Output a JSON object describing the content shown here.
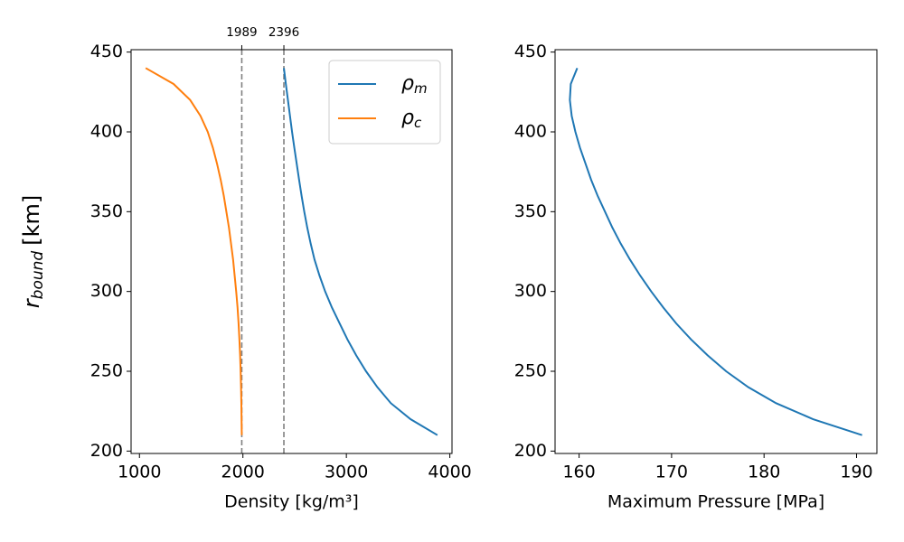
{
  "chart_data": [
    {
      "type": "line",
      "ylabel": [
        "r",
        "bound",
        "[km]"
      ],
      "xlabel": "Density [kg/m³]",
      "xlim": [
        919,
        4021
      ],
      "ylim": [
        198.5,
        451.5
      ],
      "xticks": [
        1000,
        2000,
        3000,
        4000
      ],
      "yticks": [
        200,
        250,
        300,
        350,
        400,
        450
      ],
      "vlines": [
        1989,
        2396
      ],
      "vline_color": "#808080",
      "legend": "upper right",
      "series": [
        {
          "name": "ρm",
          "color": "#1f77b4",
          "x": [
            2396,
            2415,
            2435,
            2455,
            2475,
            2497,
            2520,
            2543,
            2567,
            2593,
            2622,
            2655,
            2692,
            2740,
            2795,
            2860,
            2935,
            3010,
            3095,
            3190,
            3300,
            3430,
            3620,
            3880
          ],
          "y": [
            440,
            430,
            420,
            410,
            400,
            390,
            380,
            370,
            360,
            350,
            340,
            330,
            320,
            310,
            300,
            290,
            280,
            270,
            260,
            250,
            240,
            230,
            220,
            210
          ]
        },
        {
          "name": "ρc",
          "color": "#ff7f0e",
          "x": [
            1060,
            1330,
            1490,
            1590,
            1660,
            1710,
            1750,
            1785,
            1815,
            1840,
            1865,
            1885,
            1905,
            1920,
            1935,
            1948,
            1958,
            1966,
            1973,
            1978,
            1982,
            1985,
            1987,
            1989
          ],
          "y": [
            440,
            430,
            420,
            410,
            400,
            390,
            380,
            370,
            360,
            350,
            340,
            330,
            320,
            310,
            300,
            290,
            280,
            270,
            260,
            250,
            240,
            230,
            220,
            210
          ]
        }
      ]
    },
    {
      "type": "line",
      "xlabel": "Maximum Pressure [MPa]",
      "xlim": [
        157.4,
        192.2
      ],
      "ylim": [
        198.5,
        451.5
      ],
      "xticks": [
        160,
        170,
        180,
        190
      ],
      "yticks": [
        200,
        250,
        300,
        350,
        400,
        450
      ],
      "series": [
        {
          "color": "#1f77b4",
          "x": [
            159.8,
            159.1,
            159.0,
            159.2,
            159.6,
            160.1,
            160.7,
            161.3,
            162.0,
            162.8,
            163.6,
            164.5,
            165.5,
            166.6,
            167.8,
            169.1,
            170.5,
            172.1,
            173.9,
            175.9,
            178.3,
            181.3,
            185.3,
            190.6
          ],
          "y": [
            440,
            430,
            420,
            410,
            400,
            390,
            380,
            370,
            360,
            350,
            340,
            330,
            320,
            310,
            300,
            290,
            280,
            270,
            260,
            250,
            240,
            230,
            220,
            210
          ]
        }
      ]
    }
  ]
}
